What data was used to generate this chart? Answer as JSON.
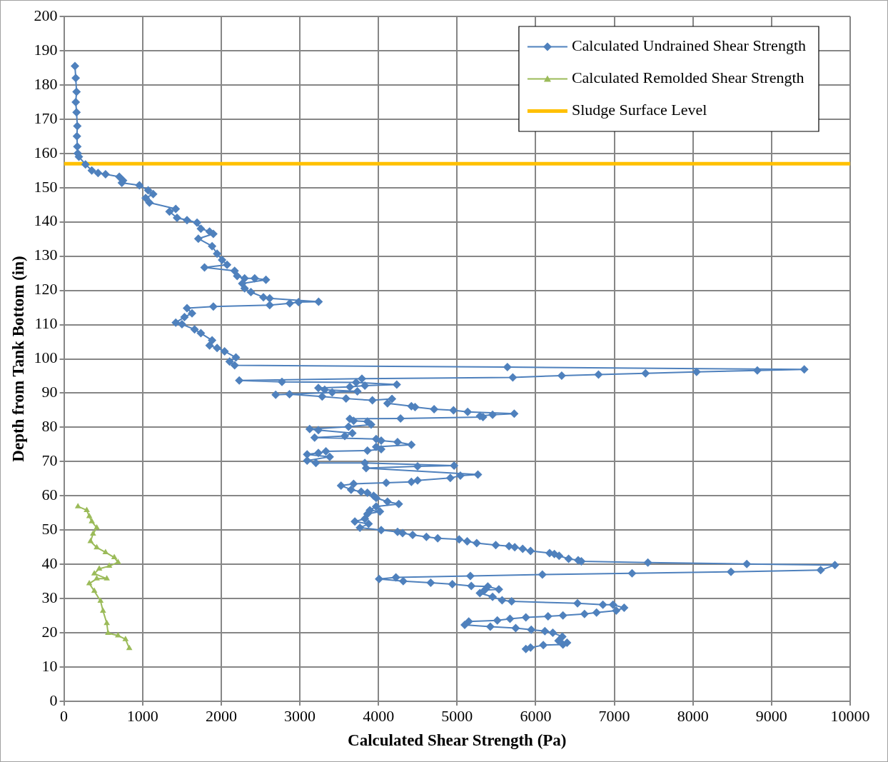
{
  "chart_data": {
    "type": "line",
    "xlabel": "Calculated Shear Strength (Pa)",
    "ylabel": "Depth from Tank Bottom (in)",
    "xlim": [
      0,
      10000
    ],
    "xticks": [
      0,
      1000,
      2000,
      3000,
      4000,
      5000,
      6000,
      7000,
      8000,
      9000,
      10000
    ],
    "ylim": [
      0,
      200
    ],
    "yticks": [
      0,
      10,
      20,
      30,
      40,
      50,
      60,
      70,
      80,
      90,
      100,
      110,
      120,
      130,
      140,
      150,
      160,
      170,
      180,
      190,
      200
    ],
    "grid": true,
    "legend": "top right",
    "line_style": "solid",
    "series": [
      {
        "name": "Calculated Undrained Shear Strength",
        "color": "#4f81bd",
        "marker": "diamond",
        "x": [
          140,
          150,
          160,
          150,
          160,
          170,
          165,
          170,
          175,
          190,
          274,
          354,
          434,
          529,
          704,
          752,
          736,
          960,
          1071,
          1135,
          1039,
          1087,
          1422,
          1342,
          1438,
          1565,
          1693,
          1741,
          1852,
          1900,
          1709,
          1884,
          1948,
          2011,
          2075,
          1788,
          2171,
          2203,
          2298,
          2426,
          2569,
          2267,
          2298,
          2378,
          2537,
          2617,
          3239,
          2984,
          2872,
          2617,
          1900,
          1565,
          1629,
          1533,
          1422,
          1501,
          1661,
          1741,
          1884,
          1852,
          1948,
          2043,
          2187,
          2107,
          2171,
          5640,
          9416,
          8819,
          8046,
          7397,
          6799,
          6331,
          5709,
          3790,
          2230,
          2773,
          3716,
          4233,
          3827,
          3636,
          3236,
          3316,
          3732,
          3412,
          2693,
          2869,
          3284,
          3588,
          3923,
          4172,
          4115,
          4419,
          4466,
          4708,
          4955,
          5135,
          5727,
          5452,
          5292,
          5330,
          4281,
          3636,
          3684,
          3860,
          3907,
          3620,
          3125,
          3236,
          3668,
          3572,
          3188,
          3971,
          4035,
          4243,
          4419,
          3971,
          4035,
          3860,
          3332,
          3236,
          3093,
          3380,
          3093,
          3204,
          3827,
          4962,
          4498,
          3843,
          5265,
          5042,
          4914,
          4498,
          4419,
          4099,
          3684,
          3524,
          3652,
          3780,
          3859,
          3939,
          3971,
          4115,
          4259,
          3971,
          3891,
          4019,
          3859,
          3827,
          3700,
          3875,
          3764,
          4035,
          4243,
          4307,
          4435,
          4610,
          4754,
          5026,
          5129,
          5250,
          5492,
          5661,
          5734,
          5835,
          5935,
          6177,
          6238,
          6298,
          6419,
          6540,
          6581,
          7427,
          8685,
          9806,
          9625,
          8484,
          7226,
          6085,
          5169,
          4222,
          4008,
          4315,
          4665,
          4940,
          5181,
          5391,
          5532,
          5351,
          5290,
          5452,
          5573,
          5694,
          6532,
          6855,
          6984,
          7125,
          7024,
          6774,
          6621,
          6347,
          6157,
          5875,
          5673,
          5512,
          5149,
          5097,
          5423,
          5746,
          5944,
          6117,
          6218,
          6339,
          6290,
          6399,
          6347,
          6097,
          5935,
          5875
        ],
        "values": [
          185.5,
          182,
          178,
          175,
          172,
          168,
          165,
          162,
          160,
          159,
          156.8,
          155,
          154.3,
          153.9,
          153.2,
          152.1,
          151.4,
          150.7,
          149.2,
          148.1,
          147,
          145.6,
          143.8,
          143,
          141.2,
          140.5,
          139.8,
          138,
          137.2,
          136.5,
          135.1,
          132.9,
          130.7,
          128.9,
          127.5,
          126.7,
          125.7,
          124.2,
          123.5,
          123.5,
          123.1,
          122,
          120.6,
          119.5,
          118,
          117.7,
          116.7,
          116.6,
          116.2,
          115.7,
          115.3,
          114.8,
          113.3,
          112.2,
          110.6,
          110.1,
          108.6,
          107.5,
          105.4,
          103.9,
          103.2,
          102.2,
          100.4,
          99.2,
          98.1,
          97.6,
          96.9,
          96.6,
          96.2,
          95.8,
          95.4,
          95.1,
          94.6,
          94.2,
          93.7,
          93.3,
          93.1,
          92.5,
          92.2,
          91.8,
          91.5,
          91,
          90.5,
          90.2,
          89.5,
          89.7,
          89,
          88.4,
          87.9,
          88.3,
          87,
          86.2,
          85.9,
          85.3,
          85,
          84.5,
          84,
          83.7,
          83.3,
          83,
          82.6,
          82.5,
          81.9,
          81.7,
          80.8,
          80.2,
          79.5,
          79.2,
          78.3,
          77.5,
          77,
          76.6,
          76.1,
          75.7,
          74.9,
          74.3,
          73.6,
          73.2,
          73,
          72.5,
          72.1,
          71.4,
          70.3,
          69.6,
          69.6,
          68.8,
          68.6,
          68.1,
          66.2,
          65.9,
          65.2,
          64.5,
          64.1,
          63.8,
          63.5,
          63,
          61.8,
          61.2,
          60.9,
          60,
          59.4,
          58.3,
          57.6,
          56.9,
          55.8,
          55.4,
          54.7,
          53.3,
          52.5,
          51.8,
          50.7,
          50,
          49.5,
          49.1,
          48.6,
          48,
          47.6,
          47.3,
          46.7,
          46.2,
          45.6,
          45.3,
          45,
          44.5,
          43.9,
          43.3,
          43,
          42.5,
          41.6,
          41.2,
          40.9,
          40.5,
          40.1,
          39.8,
          38.3,
          37.8,
          37.4,
          37,
          36.6,
          36.2,
          35.7,
          35.1,
          34.6,
          34.2,
          33.7,
          33.5,
          32.7,
          32.5,
          31.6,
          30.5,
          29.5,
          29.2,
          28.6,
          28.2,
          28.2,
          27.3,
          26.5,
          25.9,
          25.5,
          25.1,
          24.8,
          24.5,
          24.1,
          23.6,
          23.3,
          22.3,
          21.8,
          21.4,
          20.9,
          20.5,
          20,
          18.9,
          17.7,
          17.1,
          16.6,
          16.4,
          15.7,
          15.3
        ]
      },
      {
        "name": "Calculated Remolded Shear Strength",
        "color": "#9bbb59",
        "marker": "triangle",
        "x": [
          178,
          290,
          322,
          354,
          417,
          370,
          338,
          417,
          529,
          640,
          688,
          576,
          449,
          386,
          545,
          417,
          322,
          386,
          465,
          497,
          545,
          561,
          688,
          783,
          831
        ],
        "values": [
          56.9,
          55.8,
          54,
          52.5,
          50.7,
          48.9,
          46.7,
          44.9,
          43.5,
          42,
          40.6,
          39.5,
          38.7,
          37.3,
          35.8,
          35.8,
          34.4,
          32.2,
          29.3,
          26.4,
          22.8,
          19.9,
          19.2,
          18.1,
          15.5
        ]
      }
    ],
    "ref_lines": [
      {
        "axis": "y",
        "value": 157,
        "label": "Sludge Surface Level",
        "color": "#ffc000"
      }
    ]
  }
}
